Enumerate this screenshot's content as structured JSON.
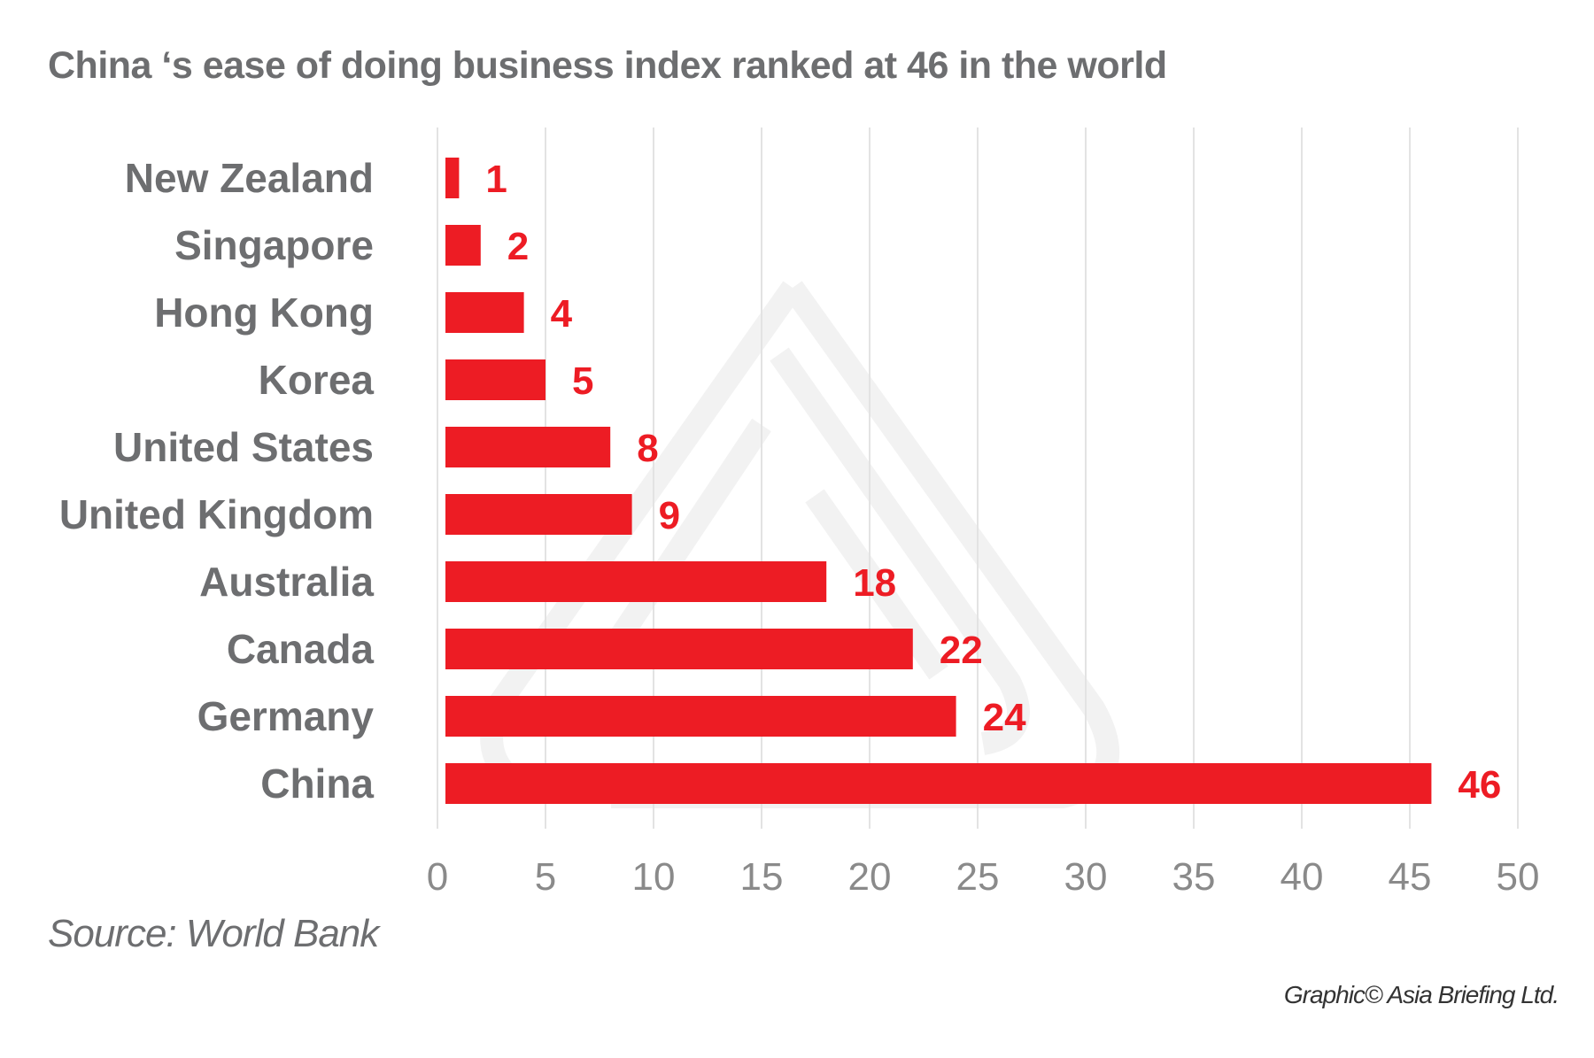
{
  "chart_data": {
    "type": "bar",
    "orientation": "horizontal",
    "title": "China ‘s ease of doing business index ranked at 46 in the world",
    "categories": [
      "New Zealand",
      "Singapore",
      "Hong Kong",
      "Korea",
      "United States",
      "United Kingdom",
      "Australia",
      "Canada",
      "Germany",
      "China"
    ],
    "values": [
      1,
      2,
      4,
      5,
      8,
      9,
      18,
      22,
      24,
      46
    ],
    "xlim": [
      0,
      50
    ],
    "xticks": [
      "0",
      "5",
      "10",
      "15",
      "20",
      "25",
      "30",
      "35",
      "40",
      "45",
      "50"
    ],
    "grid": "vertical",
    "bar_color": "#ed1c24",
    "data_labels": true
  },
  "source": "Source: World Bank",
  "credit": "Graphic© Asia Briefing Ltd."
}
